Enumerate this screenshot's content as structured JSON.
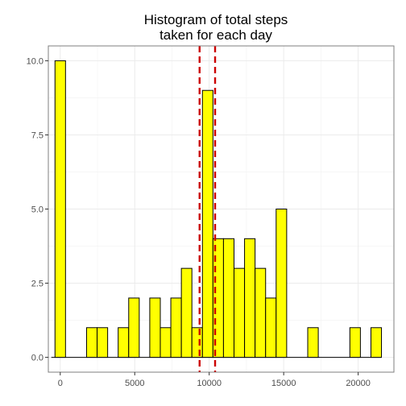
{
  "chart_data": {
    "type": "bar",
    "title_lines": [
      "Histogram of total steps",
      "taken for each day"
    ],
    "xlabel": "",
    "ylabel": "",
    "xlim": [
      -800,
      22400
    ],
    "ylim": [
      -0.5,
      10.5
    ],
    "x_ticks": [
      0,
      5000,
      10000,
      15000,
      20000
    ],
    "x_tick_labels": [
      "0",
      "5000",
      "10000",
      "15000",
      "20000"
    ],
    "y_ticks": [
      0,
      2.5,
      5,
      7.5,
      10
    ],
    "y_tick_labels": [
      "0.0",
      "2.5",
      "5.0",
      "7.5",
      "10.0"
    ],
    "bin_width": 707,
    "bin_centers": [
      0,
      707,
      1414,
      2121,
      2828,
      3535,
      4242,
      4949,
      5656,
      6363,
      7070,
      7777,
      8484,
      9191,
      9898,
      10605,
      11312,
      12019,
      12726,
      13433,
      14140,
      14847,
      15554,
      16261,
      16968,
      17675,
      18382,
      19089,
      19796,
      20503,
      21210
    ],
    "counts": [
      10,
      0,
      0,
      1,
      1,
      0,
      1,
      2,
      0,
      2,
      1,
      2,
      3,
      1,
      9,
      4,
      4,
      3,
      4,
      3,
      2,
      5,
      0,
      0,
      1,
      0,
      0,
      0,
      1,
      0,
      1
    ],
    "vlines": [
      {
        "x": 9354,
        "color": "#cc0000",
        "style": "dashed"
      },
      {
        "x": 10395,
        "color": "#cc0000",
        "style": "dashed"
      }
    ],
    "bar_fill": "#ffff00",
    "bar_stroke": "#000000",
    "grid": true,
    "theme": "bw"
  }
}
